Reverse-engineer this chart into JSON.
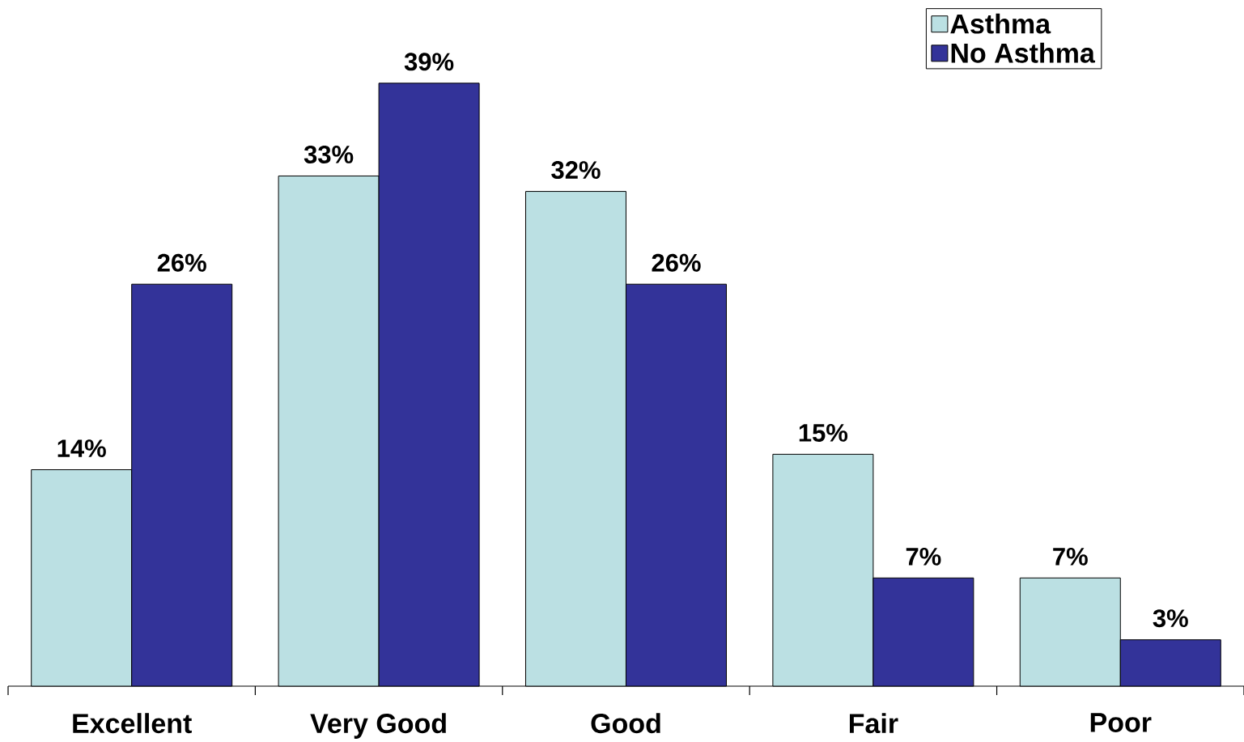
{
  "chart_data": {
    "type": "bar",
    "categories": [
      "Excellent",
      "Very Good",
      "Good",
      "Fair",
      "Poor"
    ],
    "series": [
      {
        "name": "Asthma",
        "color": "#bbe0e3",
        "values": [
          14,
          33,
          32,
          15,
          7
        ],
        "value_labels": [
          "14%",
          "33%",
          "32%",
          "15%",
          "7%"
        ]
      },
      {
        "name": "No Asthma",
        "color": "#333399",
        "values": [
          26,
          39,
          26,
          7,
          3
        ],
        "value_labels": [
          "26%",
          "39%",
          "26%",
          "7%",
          "3%"
        ]
      }
    ],
    "legend": "top right"
  }
}
